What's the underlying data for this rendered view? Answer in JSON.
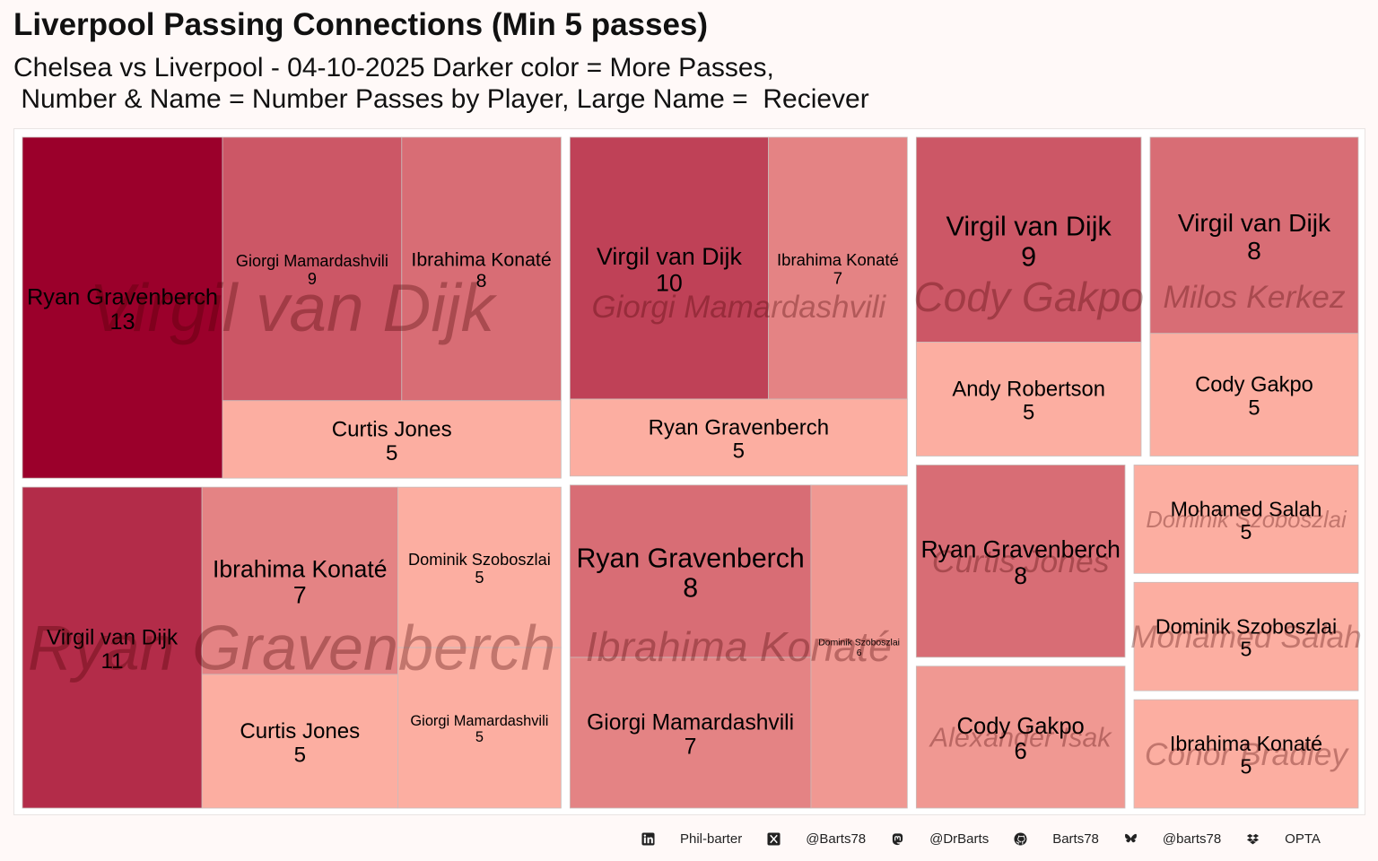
{
  "header": {
    "title": "Liverpool Passing Connections (Min 5 passes)",
    "subtitle": "Chelsea vs Liverpool - 04-10-2025 Darker color = More Passes,\n Number & Name = Number Passes by Player, Large Name =  Reciever"
  },
  "footer": {
    "items": [
      {
        "icon": "linkedin-icon",
        "text": "Phil-barter"
      },
      {
        "icon": "x-twitter-icon",
        "text": "@Barts78"
      },
      {
        "icon": "mastodon-icon",
        "text": "@DrBarts"
      },
      {
        "icon": "github-icon",
        "text": "Barts78"
      },
      {
        "icon": "bluesky-icon",
        "text": "@barts78"
      },
      {
        "icon": "dropbox-icon",
        "text": "OPTA"
      }
    ]
  },
  "chart_data": {
    "type": "treemap",
    "title": "Liverpool Passing Connections (Min 5 passes)",
    "color_scale": {
      "low": 5,
      "high": 13,
      "low_color": "#fcaea1",
      "high_color": "#9b002b"
    },
    "groups": [
      {
        "receiver": "Virgil van Dijk",
        "passers": [
          {
            "name": "Ryan Gravenberch",
            "passes": 13
          },
          {
            "name": "Giorgi Mamardashvili",
            "passes": 9
          },
          {
            "name": "Ibrahima Konaté",
            "passes": 8
          },
          {
            "name": "Curtis Jones",
            "passes": 5
          }
        ]
      },
      {
        "receiver": "Ryan Gravenberch",
        "passers": [
          {
            "name": "Virgil van Dijk",
            "passes": 11
          },
          {
            "name": "Ibrahima Konaté",
            "passes": 7
          },
          {
            "name": "Curtis Jones",
            "passes": 5
          },
          {
            "name": "Dominik Szoboszlai",
            "passes": 5
          },
          {
            "name": "Giorgi Mamardashvili",
            "passes": 5
          }
        ]
      },
      {
        "receiver": "Giorgi Mamardashvili",
        "passers": [
          {
            "name": "Virgil van Dijk",
            "passes": 10
          },
          {
            "name": "Ibrahima Konaté",
            "passes": 7
          },
          {
            "name": "Ryan Gravenberch",
            "passes": 5
          }
        ]
      },
      {
        "receiver": "Cody Gakpo",
        "passers": [
          {
            "name": "Virgil van Dijk",
            "passes": 9
          },
          {
            "name": "Andy Robertson",
            "passes": 5
          }
        ]
      },
      {
        "receiver": "Ibrahima Konaté",
        "passers": [
          {
            "name": "Ryan Gravenberch",
            "passes": 8
          },
          {
            "name": "Giorgi Mamardashvili",
            "passes": 7
          },
          {
            "name": "Dominik Szoboszlai",
            "passes": 6
          }
        ]
      },
      {
        "receiver": "Milos Kerkez",
        "passers": [
          {
            "name": "Virgil van Dijk",
            "passes": 8
          },
          {
            "name": "Cody Gakpo",
            "passes": 5
          }
        ]
      },
      {
        "receiver": "Curtis Jones",
        "passers": [
          {
            "name": "Ryan Gravenberch",
            "passes": 8
          }
        ]
      },
      {
        "receiver": "Alexander Isak",
        "passers": [
          {
            "name": "Cody Gakpo",
            "passes": 6
          }
        ]
      },
      {
        "receiver": "Dominik Szoboszlai",
        "passers": [
          {
            "name": "Mohamed Salah",
            "passes": 5
          }
        ]
      },
      {
        "receiver": "Mohamed Salah",
        "passers": [
          {
            "name": "Dominik Szoboszlai",
            "passes": 5
          }
        ]
      },
      {
        "receiver": "Conor Bradley",
        "passers": [
          {
            "name": "Ibrahima Konaté",
            "passes": 5
          }
        ]
      }
    ]
  }
}
